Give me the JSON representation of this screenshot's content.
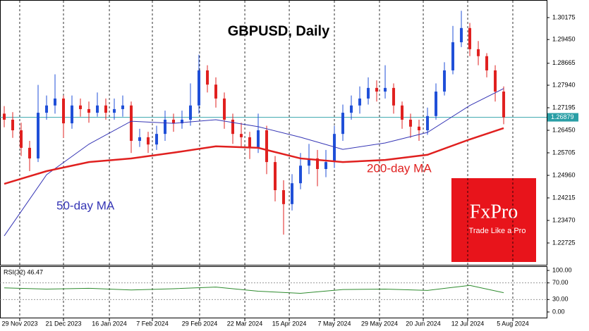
{
  "chart_data": {
    "type": "candlestick",
    "title": "GBPUSD, Daily",
    "up_color": "#1f4fd8",
    "down_color": "#e0201f",
    "xlim": [
      -0.5,
      64.08
    ],
    "xticks": [
      {
        "value": 1.83,
        "label": "29 Nov 2023"
      },
      {
        "value": 7,
        "label": "21 Dec 2023"
      },
      {
        "value": 12.42,
        "label": "16 Jan 2024"
      },
      {
        "value": 17.5,
        "label": "7 Feb 2024"
      },
      {
        "value": 23.08,
        "label": "29 Feb 2024"
      },
      {
        "value": 28.42,
        "label": "22 Mar 2024"
      },
      {
        "value": 33.67,
        "label": "15 Apr 2024"
      },
      {
        "value": 39,
        "label": "7 May 2024"
      },
      {
        "value": 44.33,
        "label": "29 May 2024"
      },
      {
        "value": 49.5,
        "label": "20 Jun 2024"
      },
      {
        "value": 54.75,
        "label": "12 Jul 2024"
      },
      {
        "value": 60.08,
        "label": "5 Aug 2024"
      }
    ],
    "ylim": [
      1.22027,
      1.3071
    ],
    "yticks": [
      1.30175,
      {
        "value": 1.2945,
        "label": "1.29450"
      },
      1.28665,
      {
        "value": 1.2794,
        "label": "1.27940"
      },
      1.27195,
      {
        "value": 1.2645,
        "label": "1.26450"
      },
      1.25705,
      {
        "value": 1.2496,
        "label": "1.24960"
      },
      1.24215,
      {
        "value": 1.2347,
        "label": "1.23470"
      },
      1.22725
    ],
    "last_price": 1.26879,
    "last_price_color": "#2a9fa6",
    "candles": {
      "open": [
        1.27,
        1.268,
        1.2645,
        1.2587,
        1.2552,
        1.2703,
        1.2727,
        1.275,
        1.2668,
        1.2727,
        1.2715,
        1.2703,
        1.2727,
        1.2703,
        1.2715,
        1.2727,
        1.261,
        1.2622,
        1.2598,
        1.2633,
        1.268,
        1.2668,
        1.268,
        1.2727,
        1.2843,
        1.2796,
        1.275,
        1.268,
        1.2633,
        1.2622,
        1.2587,
        1.2645,
        1.254,
        1.2447,
        1.2401,
        1.247,
        1.2528,
        1.2552,
        1.2517,
        1.254,
        1.2633,
        1.2703,
        1.2727,
        1.275,
        1.2785,
        1.2773,
        1.2785,
        1.2727,
        1.268,
        1.2657,
        1.2645,
        1.2692,
        1.2773,
        1.2843,
        1.2936,
        1.2983,
        1.2913,
        1.289,
        1.2843,
        1.2773
      ],
      "high": [
        1.2725,
        1.2705,
        1.267,
        1.261,
        1.2795,
        1.276,
        1.283,
        1.276,
        1.276,
        1.275,
        1.274,
        1.277,
        1.275,
        1.275,
        1.276,
        1.274,
        1.265,
        1.264,
        1.266,
        1.271,
        1.27,
        1.271,
        1.28,
        1.2895,
        1.286,
        1.282,
        1.277,
        1.27,
        1.267,
        1.264,
        1.27,
        1.266,
        1.256,
        1.248,
        1.25,
        1.257,
        1.26,
        1.258,
        1.258,
        1.266,
        1.273,
        1.276,
        1.279,
        1.282,
        1.281,
        1.286,
        1.28,
        1.274,
        1.27,
        1.268,
        1.272,
        1.28,
        1.287,
        1.299,
        1.304,
        1.3,
        1.294,
        1.29,
        1.286,
        1.279
      ],
      "low": [
        1.2655,
        1.262,
        1.256,
        1.251,
        1.254,
        1.268,
        1.27,
        1.262,
        1.265,
        1.269,
        1.267,
        1.269,
        1.268,
        1.268,
        1.269,
        1.257,
        1.259,
        1.257,
        1.258,
        1.261,
        1.264,
        1.265,
        1.266,
        1.27,
        1.277,
        1.272,
        1.265,
        1.26,
        1.259,
        1.255,
        1.257,
        1.25,
        1.241,
        1.23,
        1.238,
        1.245,
        1.25,
        1.246,
        1.249,
        1.252,
        1.261,
        1.268,
        1.27,
        1.273,
        1.274,
        1.275,
        1.27,
        1.265,
        1.262,
        1.261,
        1.263,
        1.268,
        1.276,
        1.283,
        1.292,
        1.289,
        1.286,
        1.282,
        1.274,
        1.2665
      ],
      "close": [
        1.268,
        1.2645,
        1.2587,
        1.2552,
        1.2703,
        1.2727,
        1.275,
        1.2668,
        1.2727,
        1.2715,
        1.2703,
        1.2727,
        1.2703,
        1.2715,
        1.2727,
        1.261,
        1.2622,
        1.2598,
        1.2633,
        1.268,
        1.2668,
        1.268,
        1.2727,
        1.2843,
        1.2796,
        1.275,
        1.268,
        1.2633,
        1.2622,
        1.2587,
        1.2645,
        1.254,
        1.2447,
        1.2401,
        1.247,
        1.2528,
        1.2552,
        1.2517,
        1.254,
        1.2633,
        1.2703,
        1.2727,
        1.275,
        1.2785,
        1.2773,
        1.2785,
        1.2727,
        1.268,
        1.2657,
        1.2645,
        1.2692,
        1.2773,
        1.2843,
        1.2936,
        1.2983,
        1.2913,
        1.289,
        1.2843,
        1.2773,
        1.2688
      ]
    },
    "series": [
      {
        "name": "50-day MA",
        "color": "#3535b5",
        "x": [
          0,
          5,
          10,
          15,
          20,
          25,
          30,
          35,
          40,
          45,
          50,
          55,
          59
        ],
        "values": [
          1.2296,
          1.2498,
          1.2599,
          1.2675,
          1.2668,
          1.268,
          1.2657,
          1.2622,
          1.2582,
          1.2603,
          1.2638,
          1.2727,
          1.2783
        ]
      },
      {
        "name": "200-day MA",
        "color": "#e0201f",
        "x": [
          0,
          5,
          10,
          15,
          20,
          25,
          30,
          35,
          40,
          45,
          50,
          55,
          59
        ],
        "values": [
          1.2468,
          1.251,
          1.254,
          1.2552,
          1.2571,
          1.2592,
          1.2587,
          1.2552,
          1.254,
          1.2547,
          1.2564,
          1.2615,
          1.2652
        ]
      }
    ],
    "indicator": {
      "label": "RSI(32) 46.47",
      "color": "#2e8b2e",
      "ylim": [
        -13.6,
        110.2
      ],
      "yticks": [
        {
          "value": 100,
          "label": "100.00"
        },
        {
          "value": 70,
          "label": "70.00"
        },
        {
          "value": 30,
          "label": "30.00"
        },
        {
          "value": 0,
          "label": "0.00"
        }
      ],
      "x": [
        0,
        5,
        10,
        15,
        20,
        25,
        30,
        35,
        40,
        45,
        50,
        55,
        59
      ],
      "values": [
        58,
        55,
        57,
        53,
        56,
        60,
        50,
        45,
        54,
        55,
        52,
        64,
        46.47
      ]
    }
  },
  "logo": {
    "name": "FxPro",
    "tagline": "Trade Like a Pro"
  }
}
